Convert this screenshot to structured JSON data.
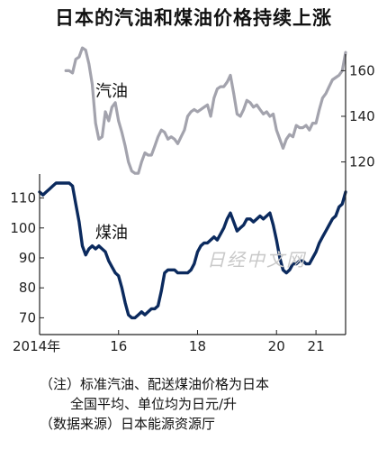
{
  "title": "日本的汽油和煤油价格持续上涨",
  "chart_data": [
    {
      "type": "line",
      "name": "汽油",
      "label": "汽油",
      "color": "#a3a3ad",
      "axis_side": "right",
      "ylim": [
        106,
        172
      ],
      "yticks": [
        120,
        140,
        160
      ],
      "x": [
        "2014-09",
        "2014-10",
        "2014-11",
        "2014-12",
        "2015-01",
        "2015-02",
        "2015-03",
        "2015-04",
        "2015-05",
        "2015-06",
        "2015-07",
        "2015-08",
        "2015-09",
        "2015-10",
        "2015-11",
        "2015-12",
        "2016-01",
        "2016-02",
        "2016-03",
        "2016-04",
        "2016-05",
        "2016-06",
        "2016-07",
        "2016-08",
        "2016-09",
        "2016-10",
        "2016-11",
        "2016-12",
        "2017-01",
        "2017-02",
        "2017-03",
        "2017-04",
        "2017-05",
        "2017-06",
        "2017-07",
        "2017-08",
        "2017-09",
        "2017-10",
        "2017-11",
        "2017-12",
        "2018-01",
        "2018-02",
        "2018-03",
        "2018-04",
        "2018-05",
        "2018-06",
        "2018-07",
        "2018-08",
        "2018-09",
        "2018-10",
        "2018-11",
        "2018-12",
        "2019-01",
        "2019-02",
        "2019-03",
        "2019-04",
        "2019-05",
        "2019-06",
        "2019-07",
        "2019-08",
        "2019-09",
        "2019-10",
        "2019-11",
        "2019-12",
        "2020-01",
        "2020-02",
        "2020-03",
        "2020-04",
        "2020-05",
        "2020-06",
        "2020-07",
        "2020-08",
        "2020-09",
        "2020-10",
        "2020-11",
        "2020-12",
        "2021-01",
        "2021-02",
        "2021-03",
        "2021-04",
        "2021-05",
        "2021-06",
        "2021-07",
        "2021-08",
        "2021-09",
        "2021-10"
      ],
      "values": [
        160,
        160,
        159,
        165,
        166,
        170,
        169,
        163,
        154,
        137,
        130,
        131,
        142,
        138,
        144,
        146,
        138,
        133,
        127,
        120,
        116,
        115,
        115,
        120,
        124,
        123,
        123,
        127,
        131,
        134,
        133,
        130,
        131,
        130,
        128,
        131,
        134,
        140,
        142,
        143,
        142,
        143,
        144,
        145,
        140,
        148,
        152,
        153,
        153,
        155,
        158,
        150,
        141,
        140,
        143,
        147,
        146,
        144,
        145,
        143,
        141,
        142,
        140,
        141,
        134,
        130,
        126,
        130,
        132,
        131,
        136,
        135,
        135,
        136,
        134,
        137,
        137,
        143,
        148,
        150,
        153,
        156,
        157,
        158,
        160,
        168
      ]
    },
    {
      "type": "line",
      "name": "煤油",
      "label": "煤油",
      "color": "#0b2a5e",
      "axis_side": "left",
      "ylim": [
        65,
        118
      ],
      "yticks": [
        70,
        80,
        90,
        100,
        110
      ],
      "x": [
        "2014-01",
        "2014-02",
        "2014-03",
        "2014-04",
        "2014-05",
        "2014-06",
        "2014-07",
        "2014-08",
        "2014-09",
        "2014-10",
        "2014-11",
        "2014-12",
        "2015-01",
        "2015-02",
        "2015-03",
        "2015-04",
        "2015-05",
        "2015-06",
        "2015-07",
        "2015-08",
        "2015-09",
        "2015-10",
        "2015-11",
        "2015-12",
        "2016-01",
        "2016-02",
        "2016-03",
        "2016-04",
        "2016-05",
        "2016-06",
        "2016-07",
        "2016-08",
        "2016-09",
        "2016-10",
        "2016-11",
        "2016-12",
        "2017-01",
        "2017-02",
        "2017-03",
        "2017-04",
        "2017-05",
        "2017-06",
        "2017-07",
        "2017-08",
        "2017-09",
        "2017-10",
        "2017-11",
        "2017-12",
        "2018-01",
        "2018-02",
        "2018-03",
        "2018-04",
        "2018-05",
        "2018-06",
        "2018-07",
        "2018-08",
        "2018-09",
        "2018-10",
        "2018-11",
        "2018-12",
        "2019-01",
        "2019-02",
        "2019-03",
        "2019-04",
        "2019-05",
        "2019-06",
        "2019-07",
        "2019-08",
        "2019-09",
        "2019-10",
        "2019-11",
        "2019-12",
        "2020-01",
        "2020-02",
        "2020-03",
        "2020-04",
        "2020-05",
        "2020-06",
        "2020-07",
        "2020-08",
        "2020-09",
        "2020-10",
        "2020-11",
        "2020-12",
        "2021-01",
        "2021-02",
        "2021-03",
        "2021-04",
        "2021-05",
        "2021-06",
        "2021-07",
        "2021-08",
        "2021-09",
        "2021-10"
      ],
      "values": [
        112,
        111,
        112,
        113,
        114,
        115,
        115,
        115,
        115,
        115,
        114,
        108,
        102,
        94,
        91,
        93,
        94,
        93,
        94,
        93,
        92,
        89,
        87,
        85,
        84,
        80,
        75,
        71,
        70,
        70,
        71,
        72,
        71,
        72,
        73,
        73,
        74,
        79,
        85,
        86,
        86,
        86,
        85,
        85,
        85,
        85,
        86,
        88,
        92,
        94,
        95,
        95,
        96,
        97,
        96,
        98,
        100,
        103,
        105,
        102,
        99,
        100,
        101,
        103,
        103,
        102,
        103,
        104,
        103,
        104,
        105,
        101,
        96,
        90,
        86,
        85,
        86,
        88,
        88,
        89,
        89,
        88,
        88,
        90,
        92,
        95,
        97,
        99,
        101,
        103,
        104,
        107,
        108,
        112
      ]
    }
  ],
  "x_axis": {
    "ticks": [
      {
        "label": "2014年",
        "date": "2014-01"
      },
      {
        "label": "16",
        "date": "2016-01"
      },
      {
        "label": "18",
        "date": "2018-01"
      },
      {
        "label": "20",
        "date": "2020-01"
      },
      {
        "label": "21",
        "date": "2021-01"
      }
    ],
    "start": "2014-01",
    "end": "2021-10"
  },
  "watermark": "日经中文网",
  "notes": {
    "line1": "（注）标准汽油、配送煤油价格为日本",
    "line2": "全国平均、单位均为日元/升",
    "line3": "（数据来源）日本能源资源厅"
  }
}
